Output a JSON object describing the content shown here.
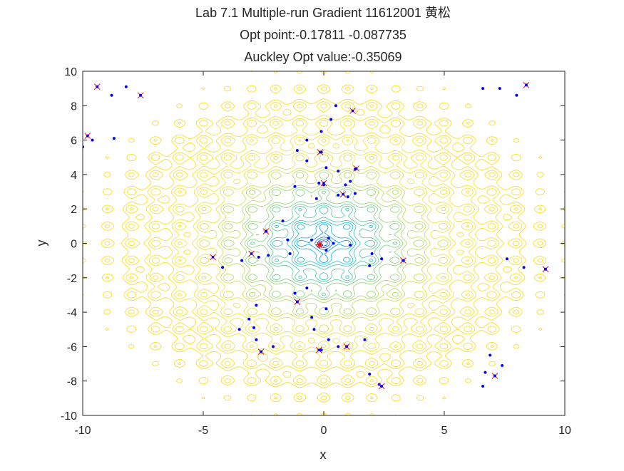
{
  "window": {
    "title_lines": [
      "Lab 7.1 Multiple-run Gradient 11612001 黄松",
      "Opt point:-0.17811   -0.087735",
      "Auckley Opt value:-0.35069"
    ]
  },
  "colors": {
    "axes": "#262626",
    "start_points": "#0000ff",
    "local_optima": "#ff0000",
    "global_optimum": "#ff0000",
    "colormap": [
      "#0000ff",
      "#00bcd4",
      "#7fd17a",
      "#f0e130",
      "#ffd700"
    ]
  },
  "chart_data": {
    "type": "contour",
    "function": "Ackley",
    "title": [
      "Lab 7.1 Multiple-run Gradient 11612001 黄松",
      "Opt point:-0.17811   -0.087735",
      "Auckley Opt value:-0.35069"
    ],
    "xlabel": "x",
    "ylabel": "y",
    "xlim": [
      -10,
      10
    ],
    "ylim": [
      -10,
      10
    ],
    "xticks": [
      -10,
      -5,
      0,
      5,
      10
    ],
    "yticks": [
      -10,
      -8,
      -6,
      -4,
      -2,
      0,
      2,
      4,
      6,
      8,
      10
    ],
    "grid": false,
    "colormap": "parula-like (blue center to yellow edges)",
    "global_optimum": {
      "x": -0.17811,
      "y": -0.087735,
      "value": -0.35069
    },
    "series": [
      {
        "marker": "dot",
        "color": "#0000ff",
        "points": [
          [
            -10,
            5.6
          ],
          [
            -9.4,
            9.1
          ],
          [
            -9.6,
            6.0
          ],
          [
            -8.8,
            8.6
          ],
          [
            -8.7,
            6.1
          ],
          [
            -8.2,
            9.1
          ],
          [
            -7.6,
            8.6
          ],
          [
            -9.8,
            6.25
          ],
          [
            -2.4,
            0.7
          ],
          [
            -1.7,
            1.3
          ],
          [
            -1.5,
            0.2
          ],
          [
            -1.4,
            -0.6
          ],
          [
            -1.1,
            5.4
          ],
          [
            -1.2,
            3.3
          ],
          [
            -0.7,
            6.0
          ],
          [
            -0.7,
            4.8
          ],
          [
            -0.1,
            6.5
          ],
          [
            -0.1,
            5.3
          ],
          [
            0.1,
            4.4
          ],
          [
            0.3,
            7.2
          ],
          [
            0.5,
            8.0
          ],
          [
            0.6,
            4.2
          ],
          [
            0.6,
            2.8
          ],
          [
            0.9,
            3.4
          ],
          [
            1.0,
            2.7
          ],
          [
            1.1,
            3.6
          ],
          [
            1.3,
            4.3
          ],
          [
            1.3,
            2.9
          ],
          [
            0.0,
            3.4
          ],
          [
            -0.2,
            3.5
          ],
          [
            -0.3,
            2.6
          ],
          [
            -0.5,
            0.2
          ],
          [
            0.2,
            0.3
          ],
          [
            0.4,
            0.0
          ],
          [
            0.1,
            -0.4
          ],
          [
            1.1,
            -0.1
          ],
          [
            2.0,
            -0.6
          ],
          [
            1.9,
            -1.3
          ],
          [
            2.4,
            -0.9
          ],
          [
            3.3,
            -1.0
          ],
          [
            -4.2,
            -1.4
          ],
          [
            -3.4,
            -1.0
          ],
          [
            -2.7,
            -0.8
          ],
          [
            -2.3,
            -0.7
          ],
          [
            -1.2,
            -2.9
          ],
          [
            -0.7,
            -2.6
          ],
          [
            -2.8,
            -3.6
          ],
          [
            -3.1,
            -4.4
          ],
          [
            -2.9,
            -4.9
          ],
          [
            -3.5,
            -5.0
          ],
          [
            -2.8,
            -5.6
          ],
          [
            -2.1,
            -6.0
          ],
          [
            -0.5,
            -4.3
          ],
          [
            -0.4,
            -5.0
          ],
          [
            0.1,
            -3.8
          ],
          [
            0.2,
            -5.6
          ],
          [
            0.6,
            -6.0
          ],
          [
            1.7,
            -5.6
          ],
          [
            1.9,
            -7.6
          ],
          [
            2.3,
            -8.2
          ],
          [
            6.6,
            -8.3
          ],
          [
            6.7,
            -7.5
          ],
          [
            6.9,
            -6.5
          ],
          [
            7.1,
            -7.7
          ],
          [
            7.4,
            -7.1
          ],
          [
            7.6,
            -0.9
          ],
          [
            8.3,
            -1.4
          ],
          [
            6.6,
            9.0
          ],
          [
            7.3,
            9.0
          ],
          [
            8.0,
            8.6
          ],
          [
            8.4,
            9.2
          ],
          [
            -2.6,
            -6.3
          ],
          [
            -1.1,
            -3.4
          ],
          [
            -0.1,
            -6.2
          ],
          [
            0.95,
            -6.0
          ],
          [
            2.4,
            -8.3
          ],
          [
            9.2,
            -1.5
          ]
        ]
      },
      {
        "marker": "x",
        "color": "#ff0000",
        "points": [
          [
            -9.4,
            9.1
          ],
          [
            -7.6,
            8.6
          ],
          [
            -9.8,
            6.25
          ],
          [
            1.2,
            7.7
          ],
          [
            -0.15,
            5.3
          ],
          [
            1.35,
            4.35
          ],
          [
            0.0,
            3.5
          ],
          [
            0.8,
            2.85
          ],
          [
            -2.4,
            0.7
          ],
          [
            -4.6,
            -0.8
          ],
          [
            -3.0,
            -0.6
          ],
          [
            3.3,
            -1.0
          ],
          [
            -1.1,
            -3.4
          ],
          [
            -2.6,
            -6.3
          ],
          [
            -0.2,
            -6.2
          ],
          [
            0.95,
            -6.0
          ],
          [
            2.4,
            -8.3
          ],
          [
            7.1,
            -7.7
          ],
          [
            9.2,
            -1.5
          ],
          [
            8.4,
            9.2
          ]
        ]
      }
    ]
  }
}
